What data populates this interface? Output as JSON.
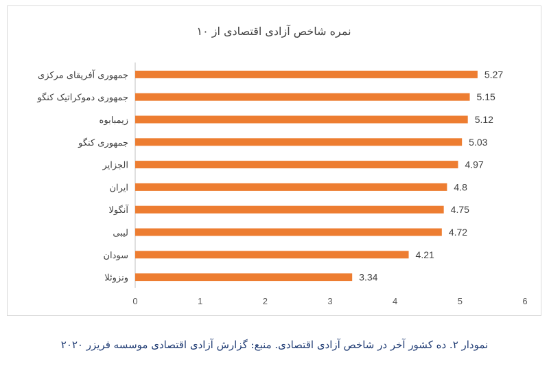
{
  "chart_data": {
    "type": "bar",
    "orientation": "horizontal",
    "title": "نمره شاخص آزادی اقتصادی از ۱۰",
    "categories": [
      "جمهوری آفریقای مرکزی",
      "جمهوری دموکراتیک کنگو",
      "زیمبابوه",
      "جمهوری کنگو",
      "الجزایر",
      "ایران",
      "آنگولا",
      "لیبی",
      "سودان",
      "ونزوئلا"
    ],
    "values": [
      5.27,
      5.15,
      5.12,
      5.03,
      4.97,
      4.8,
      4.75,
      4.72,
      4.21,
      3.34
    ],
    "value_labels": [
      "5.27",
      "5.15",
      "5.12",
      "5.03",
      "4.97",
      "4.8",
      "4.75",
      "4.72",
      "4.21",
      "3.34"
    ],
    "xlim": [
      0,
      6
    ],
    "xticks": [
      "0",
      "1",
      "2",
      "3",
      "4",
      "5",
      "6"
    ],
    "bar_color": "#ED7D31",
    "grid": false,
    "legend": "none"
  },
  "caption": "نمودار ۲. ده کشور آخر در شاخص آزادی اقتصادی. منبع: گزارش آزادی اقتصادی موسسه فریزر ۲۰۲۰"
}
